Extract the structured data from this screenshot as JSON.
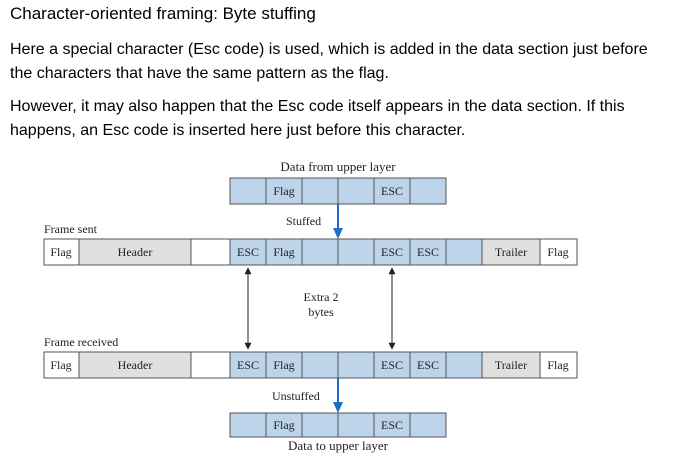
{
  "slide": {
    "title": "Character-oriented framing: Byte stuffing",
    "paragraph1": "Here a special character (Esc code) is used, which is added in the data section just before the characters that have the same pattern as the flag.",
    "paragraph2": "However, it may also happen that the Esc code itself appears in the data section. If this happens, an Esc code is inserted here just before this character."
  },
  "figure": {
    "top_caption": "Data from upper layer",
    "bottom_caption": "Data to upper layer",
    "frame_sent_label": "Frame sent",
    "frame_received_label": "Frame received",
    "stuffed_label": "Stuffed",
    "unstuffed_label": "Unstuffed",
    "extra_bytes_label_line1": "Extra 2",
    "extra_bytes_label_line2": "bytes",
    "fields": {
      "flag": "Flag",
      "header": "Header",
      "esc": "ESC",
      "trailer": "Trailer"
    },
    "colors": {
      "data_fill": "#bcd3ea",
      "header_fill": "#e0e0e0",
      "frame_border": "#555555",
      "arrow_blue": "#1f6fc5"
    }
  }
}
